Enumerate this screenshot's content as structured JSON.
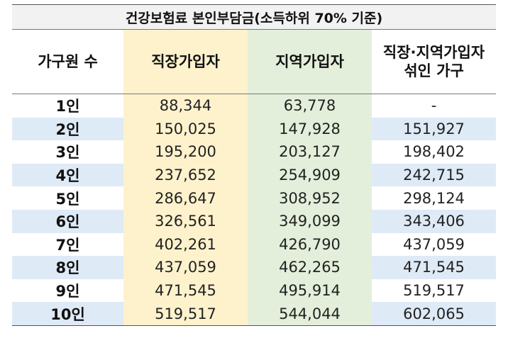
{
  "title": "건강보험료 본인부담금(소득하위 70% 기준)",
  "headers": {
    "household": "가구원 수",
    "employee": "직장가입자",
    "regional": "지역가입자",
    "mixed_line1": "직장·지역가입자",
    "mixed_line2": "섞인 가구"
  },
  "rows": [
    {
      "label": "1인",
      "employee": "88,344",
      "regional": "63,778",
      "mixed": "-"
    },
    {
      "label": "2인",
      "employee": "150,025",
      "regional": "147,928",
      "mixed": "151,927"
    },
    {
      "label": "3인",
      "employee": "195,200",
      "regional": "203,127",
      "mixed": "198,402"
    },
    {
      "label": "4인",
      "employee": "237,652",
      "regional": "254,909",
      "mixed": "242,715"
    },
    {
      "label": "5인",
      "employee": "286,647",
      "regional": "308,952",
      "mixed": "298,124"
    },
    {
      "label": "6인",
      "employee": "326,561",
      "regional": "349,099",
      "mixed": "343,406"
    },
    {
      "label": "7인",
      "employee": "402,261",
      "regional": "426,790",
      "mixed": "437,059"
    },
    {
      "label": "8인",
      "employee": "437,059",
      "regional": "462,265",
      "mixed": "471,545"
    },
    {
      "label": "9인",
      "employee": "471,545",
      "regional": "495,914",
      "mixed": "519,517"
    },
    {
      "label": "10인",
      "employee": "519,517",
      "regional": "544,044",
      "mixed": "602,065"
    }
  ],
  "colors": {
    "employee_column": "#fef2cd",
    "regional_column": "#e3efda",
    "alternate_row": "#deeaf6",
    "title_background": "#f2f2f2"
  }
}
